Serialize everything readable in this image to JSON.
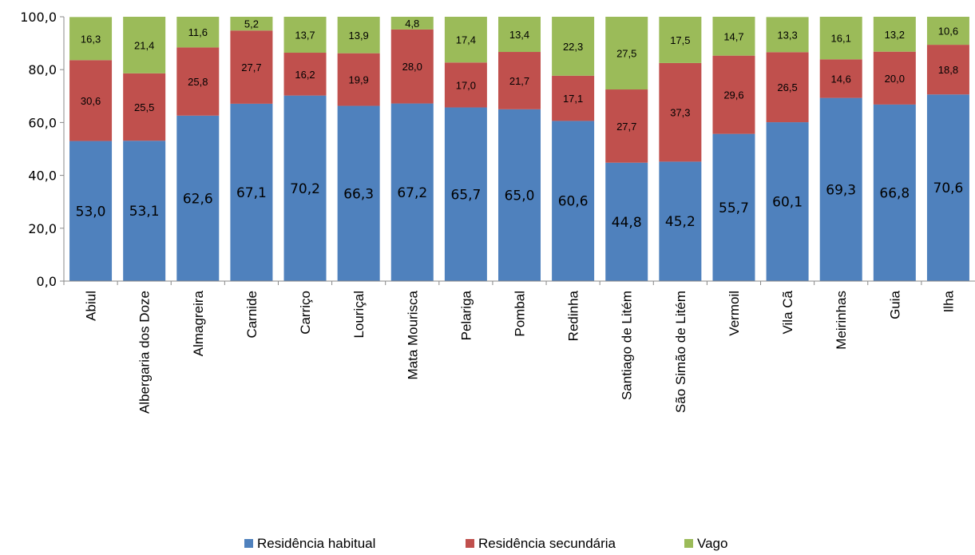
{
  "chart_data": {
    "type": "bar",
    "stacked": true,
    "title": "",
    "xlabel": "",
    "ylabel": "",
    "ylim": [
      0,
      100
    ],
    "yticks": [
      "0,0",
      "20,0",
      "40,0",
      "60,0",
      "80,0",
      "100,0"
    ],
    "grid": false,
    "legend_position": "bottom",
    "categories": [
      "Abiul",
      "Albergaria dos Doze",
      "Almagreira",
      "Carnide",
      "Carriço",
      "Louriçal",
      "Mata Mourisca",
      "Pelariga",
      "Pombal",
      "Redinha",
      "Santiago de Litém",
      "São Simão de Litém",
      "Vermoil",
      "Vila Cã",
      "Meirinhas",
      "Guia",
      "Ilha"
    ],
    "series": [
      {
        "name": "Residência habitual",
        "color": "#4f81bd",
        "values": [
          53.0,
          53.1,
          62.6,
          67.1,
          70.2,
          66.3,
          67.2,
          65.7,
          65.0,
          60.6,
          44.8,
          45.2,
          55.7,
          60.1,
          69.3,
          66.8,
          70.6
        ],
        "labels": [
          "53,0",
          "53,1",
          "62,6",
          "67,1",
          "70,2",
          "66,3",
          "67,2",
          "65,7",
          "65,0",
          "60,6",
          "44,8",
          "45,2",
          "55,7",
          "60,1",
          "69,3",
          "66,8",
          "70,6"
        ]
      },
      {
        "name": "Residência secundária",
        "color": "#c0504d",
        "values": [
          30.6,
          25.5,
          25.8,
          27.7,
          16.2,
          19.9,
          28.0,
          17.0,
          21.7,
          17.1,
          27.7,
          37.3,
          29.6,
          26.5,
          14.6,
          20.0,
          18.8
        ],
        "labels": [
          "30,6",
          "25,5",
          "25,8",
          "27,7",
          "16,2",
          "19,9",
          "28,0",
          "17,0",
          "21,7",
          "17,1",
          "27,7",
          "37,3",
          "29,6",
          "26,5",
          "14,6",
          "20,0",
          "18,8"
        ]
      },
      {
        "name": "Vago",
        "color": "#9bbb59",
        "values": [
          16.3,
          21.4,
          11.6,
          5.2,
          13.7,
          13.9,
          4.8,
          17.4,
          13.4,
          22.3,
          27.5,
          17.5,
          14.7,
          13.3,
          16.1,
          13.2,
          10.6
        ],
        "labels": [
          "16,3",
          "21,4",
          "11,6",
          "5,2",
          "13,7",
          "13,9",
          "4,8",
          "17,4",
          "13,4",
          "22,3",
          "27,5",
          "17,5",
          "14,7",
          "13,3",
          "16,1",
          "13,2",
          "10,6"
        ]
      }
    ]
  }
}
